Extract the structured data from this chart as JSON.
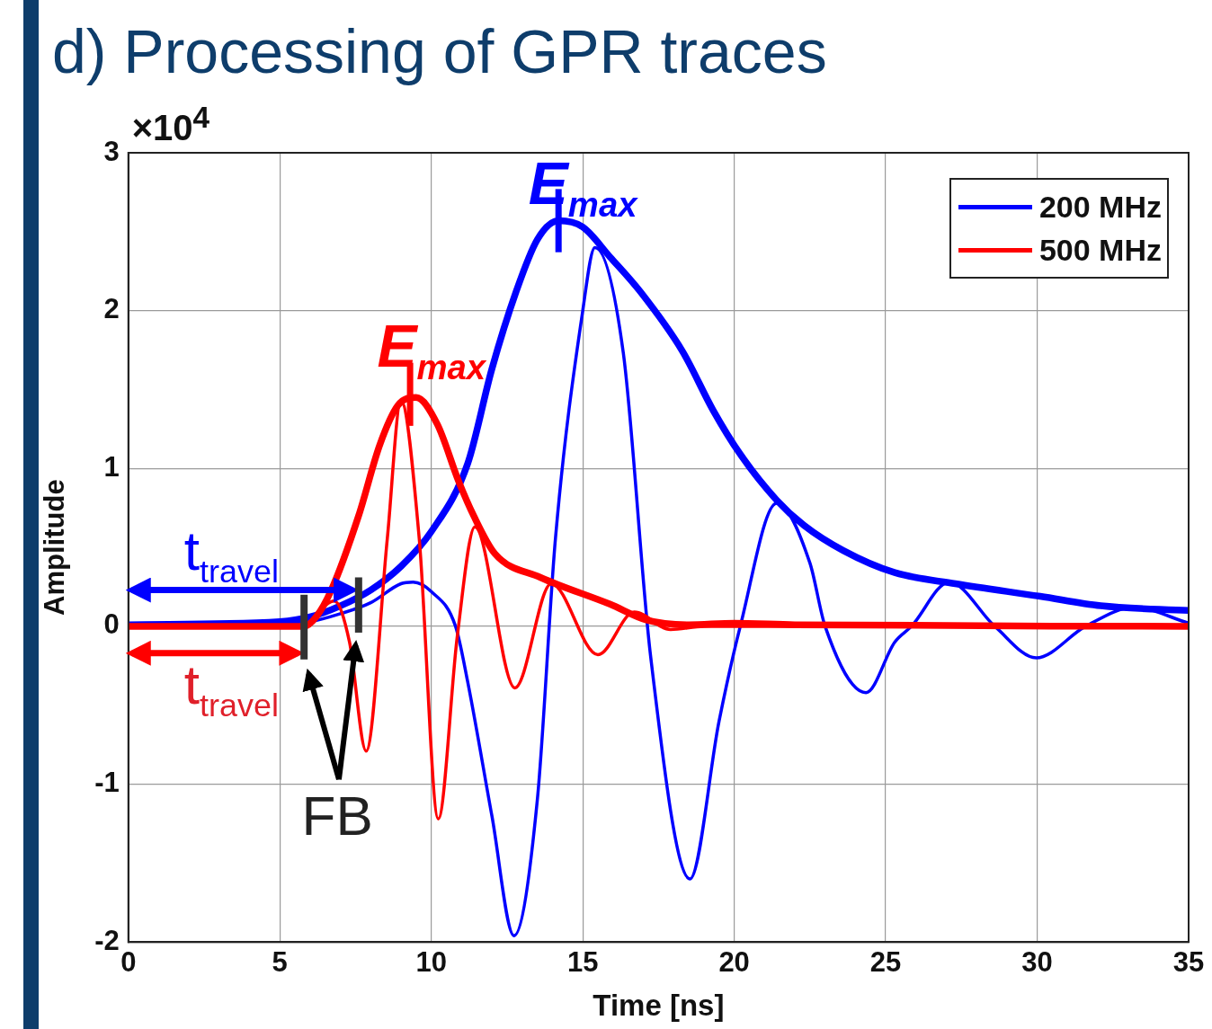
{
  "chart_data": {
    "type": "line",
    "title": "d) Processing of GPR traces",
    "xlabel": "Time [ns]",
    "ylabel": "Amplitude",
    "xlim": [
      0,
      35
    ],
    "xticks": [
      0,
      5,
      10,
      15,
      20,
      25,
      30,
      35
    ],
    "ylim": [
      -2,
      3
    ],
    "yticks": [
      -2,
      -1,
      0,
      1,
      2,
      3
    ],
    "grid": true,
    "legend": "top right",
    "marker": "none",
    "line_style": "solid",
    "annotations": [
      "×10$^{4}$",
      "E$_{max}$",
      "E$_{max}$",
      "t$_{travel}$",
      "t$_{travel}$",
      "FB"
    ],
    "series": [
      {
        "name": "200 MHz",
        "color": "#0000ff",
        "x": [
          0,
          5,
          6,
          7,
          8,
          9,
          9.4,
          10,
          10.8,
          11.2,
          12,
          12.73,
          13.5,
          14.1,
          15,
          15.4,
          16.34,
          17.24,
          18.54,
          19.5,
          20.2,
          21.4,
          22.5,
          23.0,
          24.35,
          25.3,
          25.85,
          27.1,
          28.6,
          29.97,
          31.6,
          33.2,
          35
        ],
        "values": [
          0,
          0.02,
          0.03,
          0.08,
          0.15,
          0.27,
          0.28,
          0.22,
          0,
          -0.35,
          -1.2,
          -1.96,
          -1.1,
          0.56,
          2.0,
          2.4,
          1.73,
          -0.19,
          -1.6,
          -0.6,
          0,
          0.78,
          0.4,
          0,
          -0.42,
          -0.1,
          0,
          0.28,
          0,
          -0.2,
          0,
          0.12,
          0.02
        ]
      },
      {
        "color": "#0000ff",
        "x": [
          0,
          5,
          6,
          7,
          8,
          9,
          10,
          11.2,
          12,
          12.8,
          13.5,
          14.2,
          15,
          15.9,
          16.9,
          18.3,
          19.3,
          20.2,
          21.4,
          22.3,
          23.6,
          25.3,
          27.3,
          30.1,
          32.1,
          35
        ],
        "values": [
          0.01,
          0.03,
          0.06,
          0.13,
          0.23,
          0.38,
          0.6,
          1.03,
          1.63,
          2.12,
          2.45,
          2.57,
          2.53,
          2.34,
          2.12,
          1.74,
          1.37,
          1.09,
          0.8,
          0.64,
          0.48,
          0.34,
          0.27,
          0.19,
          0.13,
          0.1
        ]
      },
      {
        "name": "500 MHz",
        "color": "#ff0000",
        "x": [
          0,
          5.7,
          6.8,
          7.3,
          7.85,
          8.55,
          9.0,
          9.6,
          10.23,
          10.86,
          11.44,
          12.76,
          13.96,
          15.5,
          16.7,
          17.9,
          19,
          35
        ],
        "values": [
          0,
          0,
          0.16,
          -0.1,
          -0.79,
          0.56,
          1.43,
          0.56,
          -1.22,
          -0.06,
          0.63,
          -0.39,
          0.27,
          -0.18,
          0.09,
          -0.02,
          0,
          0
        ]
      },
      {
        "color": "#ff0000",
        "x": [
          0,
          5.8,
          6.2,
          6.7,
          7.6,
          8.3,
          8.9,
          9.5,
          10.2,
          10.9,
          11.4,
          12.1,
          13.6,
          15.9,
          17.1,
          18.5,
          20,
          22,
          35
        ],
        "values": [
          0,
          0,
          0.06,
          0.23,
          0.7,
          1.15,
          1.4,
          1.45,
          1.28,
          0.92,
          0.7,
          0.46,
          0.31,
          0.14,
          0.04,
          0.01,
          0.02,
          0.01,
          0
        ]
      }
    ]
  }
}
